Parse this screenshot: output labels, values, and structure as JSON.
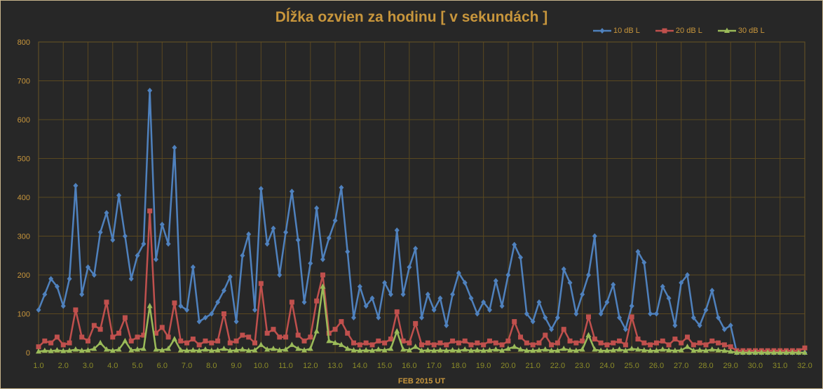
{
  "chart_data": {
    "type": "line",
    "title": "Dĺžka ozvien za hodinu [ v sekundách ]",
    "xlabel": "FEB  2015  UT",
    "ylabel": "",
    "xlim": [
      1,
      32
    ],
    "ylim": [
      0,
      800
    ],
    "x_start": 1.0,
    "x_step": 0.25,
    "grid": true,
    "legend_position": "top-right",
    "xticks": [
      "1.0",
      "2.0",
      "3.0",
      "4.0",
      "5.0",
      "6.0",
      "7.0",
      "8.0",
      "9.0",
      "10.0",
      "11.0",
      "12.0",
      "13.0",
      "14.0",
      "15.0",
      "16.0",
      "17.0",
      "18.0",
      "19.0",
      "20.0",
      "21.0",
      "22.0",
      "23.0",
      "24.0",
      "25.0",
      "26.0",
      "27.0",
      "28.0",
      "29.0",
      "30.0",
      "31.0",
      "32.0"
    ],
    "yticks": [
      "0",
      "100",
      "200",
      "300",
      "400",
      "500",
      "600",
      "700",
      "800"
    ],
    "series": [
      {
        "name": "10 dB L",
        "color": "#4f81bd",
        "marker": "diamond",
        "values": [
          110,
          150,
          190,
          170,
          120,
          190,
          430,
          150,
          220,
          200,
          310,
          360,
          290,
          405,
          300,
          190,
          250,
          280,
          675,
          240,
          330,
          280,
          528,
          120,
          110,
          220,
          80,
          90,
          100,
          130,
          160,
          195,
          80,
          250,
          305,
          110,
          422,
          280,
          320,
          200,
          310,
          415,
          290,
          130,
          230,
          372,
          240,
          295,
          340,
          425,
          260,
          90,
          170,
          120,
          140,
          90,
          180,
          150,
          315,
          150,
          220,
          268,
          90,
          150,
          110,
          140,
          70,
          150,
          205,
          180,
          140,
          100,
          130,
          110,
          185,
          120,
          200,
          278,
          245,
          100,
          80,
          130,
          90,
          60,
          90,
          215,
          180,
          100,
          150,
          200,
          300,
          100,
          130,
          175,
          90,
          60,
          120,
          260,
          232,
          100,
          100,
          170,
          140,
          70,
          180,
          200,
          90,
          70,
          110,
          160,
          90,
          60,
          70,
          0,
          0,
          0,
          0,
          0,
          0,
          0,
          0,
          0,
          0,
          0,
          0
        ]
      },
      {
        "name": "20 dB L",
        "color": "#c0504d",
        "marker": "square",
        "values": [
          15,
          30,
          25,
          40,
          20,
          25,
          110,
          40,
          30,
          70,
          60,
          130,
          40,
          50,
          90,
          30,
          40,
          45,
          365,
          50,
          65,
          40,
          128,
          30,
          25,
          35,
          20,
          30,
          25,
          30,
          100,
          25,
          30,
          45,
          40,
          25,
          178,
          50,
          60,
          40,
          40,
          130,
          45,
          30,
          40,
          133,
          200,
          50,
          60,
          80,
          50,
          25,
          20,
          25,
          20,
          30,
          25,
          35,
          105,
          30,
          25,
          75,
          20,
          25,
          20,
          25,
          20,
          30,
          25,
          30,
          20,
          25,
          20,
          30,
          25,
          20,
          30,
          80,
          40,
          25,
          20,
          25,
          45,
          20,
          25,
          60,
          30,
          25,
          30,
          92,
          35,
          25,
          20,
          25,
          30,
          20,
          92,
          35,
          25,
          20,
          25,
          30,
          20,
          35,
          25,
          40,
          20,
          25,
          20,
          30,
          25,
          20,
          15,
          5,
          5,
          5,
          5,
          5,
          5,
          5,
          5,
          5,
          5,
          5,
          12
        ]
      },
      {
        "name": "30 dB L",
        "color": "#9bbb59",
        "marker": "triangle",
        "values": [
          3,
          5,
          4,
          6,
          4,
          5,
          8,
          5,
          6,
          10,
          25,
          8,
          5,
          8,
          30,
          6,
          8,
          10,
          120,
          8,
          6,
          10,
          35,
          6,
          5,
          6,
          5,
          8,
          5,
          6,
          10,
          5,
          6,
          8,
          5,
          6,
          20,
          8,
          10,
          6,
          8,
          20,
          10,
          6,
          10,
          55,
          170,
          30,
          25,
          20,
          10,
          6,
          5,
          6,
          5,
          8,
          6,
          10,
          55,
          8,
          6,
          15,
          5,
          6,
          5,
          6,
          5,
          6,
          5,
          8,
          5,
          6,
          5,
          6,
          8,
          5,
          10,
          15,
          8,
          5,
          5,
          6,
          8,
          5,
          5,
          10,
          6,
          5,
          8,
          45,
          8,
          5,
          5,
          6,
          8,
          5,
          10,
          8,
          6,
          5,
          5,
          8,
          6,
          5,
          6,
          15,
          5,
          6,
          5,
          8,
          6,
          5,
          3,
          0,
          0,
          0,
          0,
          0,
          0,
          0,
          0,
          0,
          0,
          0,
          0
        ]
      }
    ]
  }
}
